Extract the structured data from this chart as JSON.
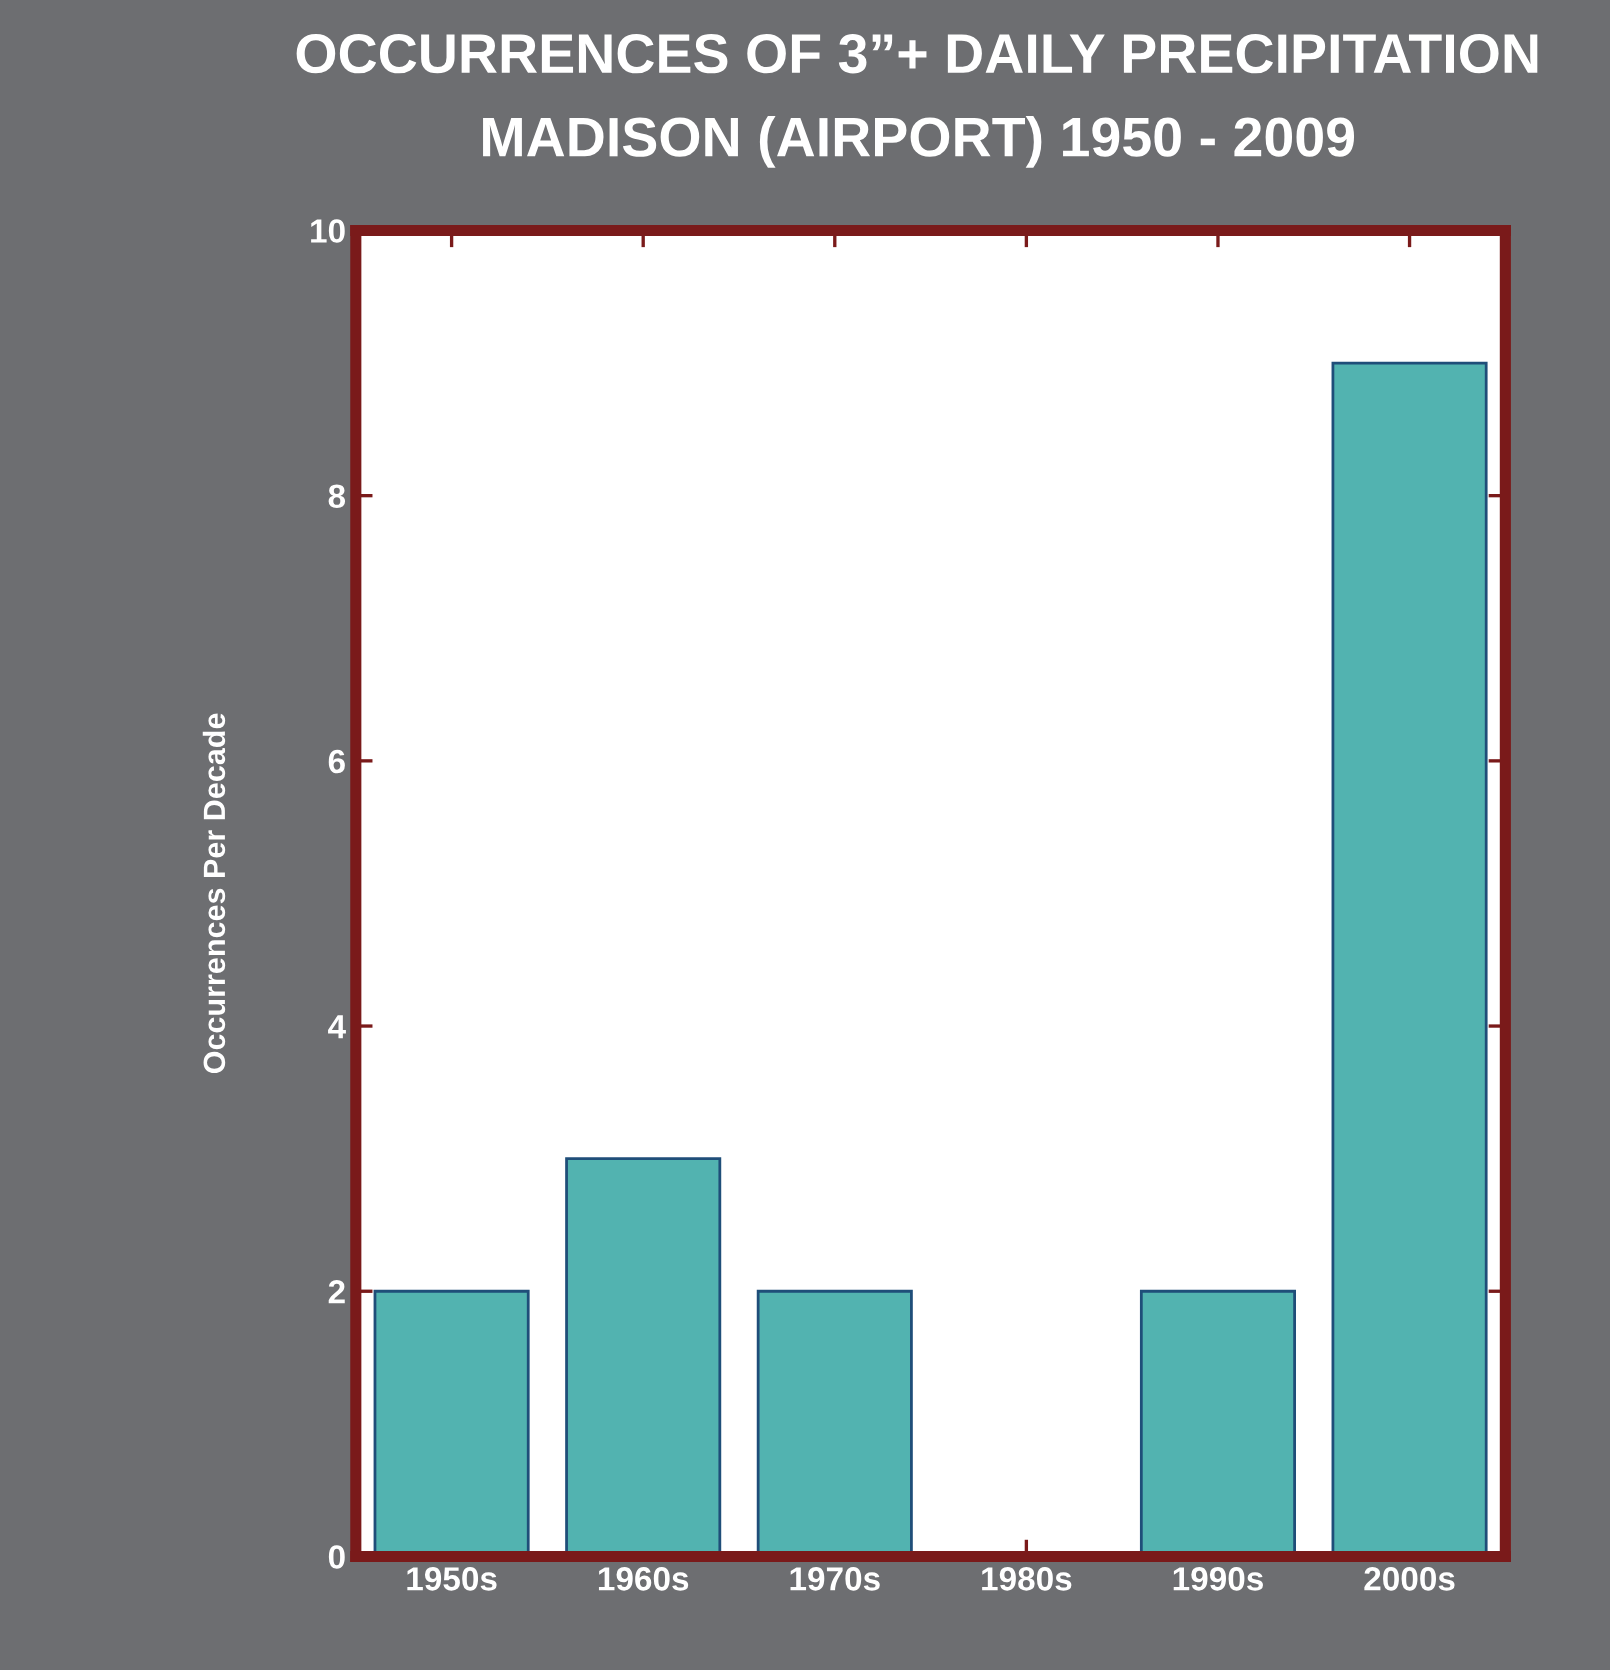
{
  "chart_data": {
    "type": "bar",
    "title": "OCCURRENCES OF 3”+ DAILY PRECIPITATION",
    "subtitle": "MADISON (AIRPORT) 1950 - 2009",
    "ylabel": "Occurrences Per Decade",
    "categories": [
      "1950s",
      "1960s",
      "1970s",
      "1980s",
      "1990s",
      "2000s"
    ],
    "values": [
      2,
      3,
      2,
      0,
      2,
      9
    ],
    "color": "#52b3b0",
    "ylim": [
      0,
      10
    ],
    "yticks": [
      0,
      2,
      4,
      6,
      8,
      10
    ],
    "grid": false,
    "legend": false
  }
}
